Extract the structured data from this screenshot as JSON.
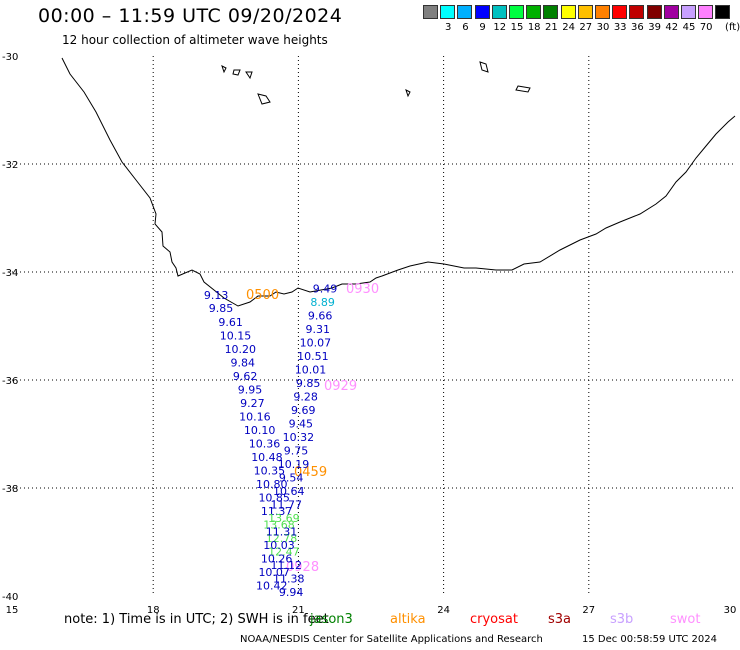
{
  "header": {
    "title": "00:00 – 11:59 UTC 09/20/2024",
    "subtitle": "12 hour collection of altimeter wave heights"
  },
  "color_scale": {
    "unit": "(ft)",
    "bins": [
      {
        "label": "",
        "color": "#808080"
      },
      {
        "label": "3",
        "color": "#00ffff"
      },
      {
        "label": "6",
        "color": "#00b0ff"
      },
      {
        "label": "9",
        "color": "#0000ff"
      },
      {
        "label": "12",
        "color": "#00c0c0"
      },
      {
        "label": "15",
        "color": "#00ff40"
      },
      {
        "label": "18",
        "color": "#00b000"
      },
      {
        "label": "21",
        "color": "#008000"
      },
      {
        "label": "24",
        "color": "#ffff00"
      },
      {
        "label": "27",
        "color": "#ffc000"
      },
      {
        "label": "30",
        "color": "#ff8000"
      },
      {
        "label": "33",
        "color": "#ff0000"
      },
      {
        "label": "36",
        "color": "#c00000"
      },
      {
        "label": "39",
        "color": "#800000"
      },
      {
        "label": "42",
        "color": "#a000a0"
      },
      {
        "label": "45",
        "color": "#c8a0ff"
      },
      {
        "label": "70",
        "color": "#ff80ff"
      },
      {
        "label": "",
        "color": "#000000"
      }
    ]
  },
  "axes": {
    "lon_ticks": [
      "15",
      "18",
      "21",
      "24",
      "27",
      "30"
    ],
    "lat_ticks": [
      "-30",
      "-32",
      "-34",
      "-36",
      "-38",
      "-40"
    ],
    "lon_range": [
      15,
      30
    ],
    "lat_range": [
      -40,
      -30
    ]
  },
  "track_labels": [
    {
      "text": "0500",
      "color": "#ff9000"
    },
    {
      "text": "0930",
      "color": "#ff90ff"
    },
    {
      "text": "0929",
      "color": "#ff90ff"
    },
    {
      "text": "0459",
      "color": "#ff9000"
    },
    {
      "text": "0928",
      "color": "#ff90ff"
    }
  ],
  "wave_heights": [
    {
      "text": "9.13",
      "lon": 19.3,
      "lat": -34.5,
      "color": "#0000c0"
    },
    {
      "text": "9.85",
      "lon": 19.4,
      "lat": -34.74,
      "color": "#0000c0"
    },
    {
      "text": "9.61",
      "lon": 19.6,
      "lat": -35.0,
      "color": "#0000c0"
    },
    {
      "text": "10.15",
      "lon": 19.7,
      "lat": -35.25,
      "color": "#0000c0"
    },
    {
      "text": "10.20",
      "lon": 19.8,
      "lat": -35.5,
      "color": "#0000c0"
    },
    {
      "text": "9.84",
      "lon": 19.85,
      "lat": -35.75,
      "color": "#0000c0"
    },
    {
      "text": "9.62",
      "lon": 19.9,
      "lat": -36.0,
      "color": "#0000c0"
    },
    {
      "text": "9.95",
      "lon": 20.0,
      "lat": -36.25,
      "color": "#0000c0"
    },
    {
      "text": "9.27",
      "lon": 20.05,
      "lat": -36.5,
      "color": "#0000c0"
    },
    {
      "text": "10.16",
      "lon": 20.1,
      "lat": -36.75,
      "color": "#0000c0"
    },
    {
      "text": "10.10",
      "lon": 20.2,
      "lat": -37.0,
      "color": "#0000c0"
    },
    {
      "text": "10.36",
      "lon": 20.3,
      "lat": -37.25,
      "color": "#0000c0"
    },
    {
      "text": "10.48",
      "lon": 20.35,
      "lat": -37.5,
      "color": "#0000c0"
    },
    {
      "text": "10.35",
      "lon": 20.4,
      "lat": -37.75,
      "color": "#0000c0"
    },
    {
      "text": "10.80",
      "lon": 20.45,
      "lat": -38.0,
      "color": "#0000c0"
    },
    {
      "text": "10.85",
      "lon": 20.5,
      "lat": -38.25,
      "color": "#0000c0"
    },
    {
      "text": "11.37",
      "lon": 20.55,
      "lat": -38.5,
      "color": "#0000c0"
    },
    {
      "text": "13.68",
      "lon": 20.6,
      "lat": -38.75,
      "color": "#50e050"
    },
    {
      "text": "12.78",
      "lon": 20.65,
      "lat": -39.0,
      "color": "#50e050"
    },
    {
      "text": "12.47",
      "lon": 20.7,
      "lat": -39.25,
      "color": "#50e050"
    },
    {
      "text": "11.12",
      "lon": 20.75,
      "lat": -39.5,
      "color": "#0000c0"
    },
    {
      "text": "11.38",
      "lon": 20.8,
      "lat": -39.75,
      "color": "#0000c0"
    },
    {
      "text": "9.94",
      "lon": 20.85,
      "lat": -40.0,
      "color": "#0000c0"
    },
    {
      "text": "9.49",
      "lon": 21.55,
      "lat": -34.38,
      "color": "#0000c0"
    },
    {
      "text": "8.89",
      "lon": 21.5,
      "lat": -34.63,
      "color": "#00b0d0"
    },
    {
      "text": "9.66",
      "lon": 21.45,
      "lat": -34.88,
      "color": "#0000c0"
    },
    {
      "text": "9.31",
      "lon": 21.4,
      "lat": -35.13,
      "color": "#0000c0"
    },
    {
      "text": "10.07",
      "lon": 21.35,
      "lat": -35.38,
      "color": "#0000c0"
    },
    {
      "text": "10.51",
      "lon": 21.3,
      "lat": -35.63,
      "color": "#0000c0"
    },
    {
      "text": "10.01",
      "lon": 21.25,
      "lat": -35.88,
      "color": "#0000c0"
    },
    {
      "text": "9.85",
      "lon": 21.2,
      "lat": -36.13,
      "color": "#0000c0"
    },
    {
      "text": "9.28",
      "lon": 21.15,
      "lat": -36.38,
      "color": "#0000c0"
    },
    {
      "text": "9.69",
      "lon": 21.1,
      "lat": -36.63,
      "color": "#0000c0"
    },
    {
      "text": "9.45",
      "lon": 21.05,
      "lat": -36.88,
      "color": "#0000c0"
    },
    {
      "text": "10.32",
      "lon": 21.0,
      "lat": -37.13,
      "color": "#0000c0"
    },
    {
      "text": "9.75",
      "lon": 20.95,
      "lat": -37.38,
      "color": "#0000c0"
    },
    {
      "text": "10.19",
      "lon": 20.9,
      "lat": -37.63,
      "color": "#0000c0"
    },
    {
      "text": "9.54",
      "lon": 20.85,
      "lat": -37.88,
      "color": "#0000c0"
    },
    {
      "text": "10.64",
      "lon": 20.8,
      "lat": -38.13,
      "color": "#0000c0"
    },
    {
      "text": "11.77",
      "lon": 20.75,
      "lat": -38.38,
      "color": "#0000c0"
    },
    {
      "text": "13.69",
      "lon": 20.7,
      "lat": -38.63,
      "color": "#50e050"
    },
    {
      "text": "11.31",
      "lon": 20.65,
      "lat": -38.88,
      "color": "#0000c0"
    },
    {
      "text": "10.03",
      "lon": 20.6,
      "lat": -39.13,
      "color": "#0000c0"
    },
    {
      "text": "10.26",
      "lon": 20.55,
      "lat": -39.38,
      "color": "#0000c0"
    },
    {
      "text": "10.07",
      "lon": 20.5,
      "lat": -39.63,
      "color": "#0000c0"
    },
    {
      "text": "10.42",
      "lon": 20.45,
      "lat": -39.88,
      "color": "#0000c0"
    }
  ],
  "footer": {
    "note": "note:  1) Time is in UTC;  2) SWH is in feet",
    "satellites": [
      {
        "name": "jason3",
        "color": "#008000"
      },
      {
        "name": "altika",
        "color": "#ff9000"
      },
      {
        "name": "cryosat",
        "color": "#ff0000"
      },
      {
        "name": "s3a",
        "color": "#a00000"
      },
      {
        "name": "s3b",
        "color": "#c8a0ff"
      },
      {
        "name": "swot",
        "color": "#ff90ff"
      }
    ],
    "credit": "NOAA/NESDIS Center for Satellite Applications and Research",
    "timestamp": "15 Dec 00:58:59 UTC 2024"
  }
}
